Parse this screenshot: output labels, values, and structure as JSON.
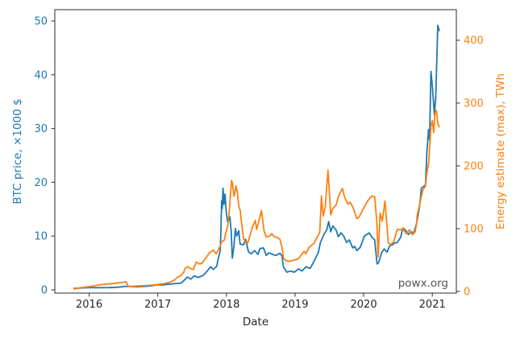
{
  "figure": {
    "watermark": "powx.org"
  },
  "style": {
    "background": "#ffffff",
    "spine_color": "#3d3d3d",
    "tick_color": "#3d3d3d",
    "x_tick_label_color": "#262626",
    "watermark_color": "#555555"
  },
  "chart_data": {
    "type": "line",
    "title": "",
    "xlabel": "Date",
    "grid": false,
    "legend_position": "none",
    "xlim": [
      2015.5,
      2021.35
    ],
    "x_ticks": [
      2016,
      2017,
      2018,
      2019,
      2020,
      2021
    ],
    "left_axis": {
      "label": "BTC price, ×1000 $",
      "color": "#1f77b4",
      "ticks": [
        0,
        10,
        20,
        30,
        40,
        50
      ],
      "lim": [
        -0.6,
        52.1
      ]
    },
    "right_axis": {
      "label": "Energy estimate (max), TWh",
      "color": "#ff7f0e",
      "ticks": [
        0,
        100,
        200,
        300,
        400
      ],
      "lim": [
        -2.6,
        448.7
      ]
    },
    "series": [
      {
        "name": "BTC price, ×1000 $",
        "axis": "left",
        "color": "#1f77b4",
        "points": [
          [
            2015.78,
            0.28
          ],
          [
            2015.88,
            0.34
          ],
          [
            2016.03,
            0.43
          ],
          [
            2016.13,
            0.41
          ],
          [
            2016.29,
            0.42
          ],
          [
            2016.43,
            0.5
          ],
          [
            2016.52,
            0.66
          ],
          [
            2016.6,
            0.61
          ],
          [
            2016.7,
            0.58
          ],
          [
            2016.82,
            0.66
          ],
          [
            2016.91,
            0.74
          ],
          [
            2016.99,
            0.95
          ],
          [
            2017.05,
            0.89
          ],
          [
            2017.14,
            1.02
          ],
          [
            2017.26,
            1.18
          ],
          [
            2017.34,
            1.25
          ],
          [
            2017.38,
            1.7
          ],
          [
            2017.43,
            2.4
          ],
          [
            2017.48,
            2.0
          ],
          [
            2017.53,
            2.6
          ],
          [
            2017.59,
            2.3
          ],
          [
            2017.66,
            2.7
          ],
          [
            2017.72,
            3.5
          ],
          [
            2017.77,
            4.3
          ],
          [
            2017.81,
            3.8
          ],
          [
            2017.86,
            4.4
          ],
          [
            2017.88,
            5.8
          ],
          [
            2017.91,
            7.3
          ],
          [
            2017.92,
            11.0
          ],
          [
            2017.93,
            16.6
          ],
          [
            2017.94,
            15.1
          ],
          [
            2017.95,
            18.9
          ],
          [
            2017.965,
            15.9
          ],
          [
            2017.98,
            17.8
          ],
          [
            2018.0,
            14.2
          ],
          [
            2018.02,
            12.5
          ],
          [
            2018.05,
            13.6
          ],
          [
            2018.07,
            10.8
          ],
          [
            2018.085,
            5.9
          ],
          [
            2018.11,
            8.2
          ],
          [
            2018.13,
            11.4
          ],
          [
            2018.15,
            10.0
          ],
          [
            2018.18,
            11.0
          ],
          [
            2018.2,
            8.5
          ],
          [
            2018.25,
            8.4
          ],
          [
            2018.28,
            9.4
          ],
          [
            2018.32,
            7.1
          ],
          [
            2018.36,
            6.7
          ],
          [
            2018.41,
            7.3
          ],
          [
            2018.46,
            6.6
          ],
          [
            2018.49,
            7.7
          ],
          [
            2018.54,
            7.8
          ],
          [
            2018.58,
            6.4
          ],
          [
            2018.62,
            6.9
          ],
          [
            2018.67,
            6.6
          ],
          [
            2018.72,
            6.4
          ],
          [
            2018.78,
            6.8
          ],
          [
            2018.81,
            6.3
          ],
          [
            2018.83,
            4.3
          ],
          [
            2018.88,
            3.3
          ],
          [
            2018.93,
            3.5
          ],
          [
            2018.99,
            3.3
          ],
          [
            2019.05,
            3.9
          ],
          [
            2019.1,
            3.5
          ],
          [
            2019.16,
            4.3
          ],
          [
            2019.22,
            4.0
          ],
          [
            2019.28,
            5.4
          ],
          [
            2019.34,
            7.0
          ],
          [
            2019.37,
            8.8
          ],
          [
            2019.42,
            10.3
          ],
          [
            2019.46,
            11.1
          ],
          [
            2019.49,
            12.7
          ],
          [
            2019.52,
            10.8
          ],
          [
            2019.55,
            11.9
          ],
          [
            2019.6,
            11.1
          ],
          [
            2019.63,
            9.9
          ],
          [
            2019.67,
            10.6
          ],
          [
            2019.71,
            10.0
          ],
          [
            2019.75,
            8.8
          ],
          [
            2019.79,
            9.3
          ],
          [
            2019.84,
            7.8
          ],
          [
            2019.87,
            8.1
          ],
          [
            2019.9,
            7.3
          ],
          [
            2019.95,
            7.9
          ],
          [
            2020.01,
            10.0
          ],
          [
            2020.08,
            10.6
          ],
          [
            2020.12,
            9.8
          ],
          [
            2020.16,
            9.3
          ],
          [
            2020.195,
            4.8
          ],
          [
            2020.22,
            5.1
          ],
          [
            2020.26,
            6.9
          ],
          [
            2020.3,
            7.6
          ],
          [
            2020.34,
            7.0
          ],
          [
            2020.38,
            8.2
          ],
          [
            2020.42,
            8.4
          ],
          [
            2020.45,
            8.7
          ],
          [
            2020.49,
            8.8
          ],
          [
            2020.54,
            9.8
          ],
          [
            2020.57,
            11.5
          ],
          [
            2020.61,
            11.1
          ],
          [
            2020.65,
            10.3
          ],
          [
            2020.69,
            10.8
          ],
          [
            2020.73,
            10.6
          ],
          [
            2020.77,
            12.3
          ],
          [
            2020.81,
            15.1
          ],
          [
            2020.83,
            17.4
          ],
          [
            2020.84,
            18.9
          ],
          [
            2020.88,
            19.3
          ],
          [
            2020.9,
            19.5
          ],
          [
            2020.92,
            25.3
          ],
          [
            2020.945,
            29.8
          ],
          [
            2020.96,
            27.8
          ],
          [
            2020.98,
            40.6
          ],
          [
            2021.0,
            38.0
          ],
          [
            2021.03,
            32.5
          ],
          [
            2021.05,
            36.0
          ],
          [
            2021.08,
            49.2
          ],
          [
            2021.1,
            48.2
          ]
        ]
      },
      {
        "name": "Energy estimate (max), TWh",
        "axis": "right",
        "color": "#ff7f0e",
        "points": [
          [
            2015.78,
            4
          ],
          [
            2015.88,
            6
          ],
          [
            2016.03,
            8
          ],
          [
            2016.15,
            10.5
          ],
          [
            2016.23,
            11.5
          ],
          [
            2016.35,
            12.5
          ],
          [
            2016.43,
            14
          ],
          [
            2016.49,
            14.5
          ],
          [
            2016.54,
            15.5
          ],
          [
            2016.57,
            8
          ],
          [
            2016.62,
            8.2
          ],
          [
            2016.7,
            8.8
          ],
          [
            2016.82,
            9.5
          ],
          [
            2016.93,
            10.2
          ],
          [
            2016.99,
            10.8
          ],
          [
            2017.09,
            12.5
          ],
          [
            2017.17,
            14.5
          ],
          [
            2017.24,
            18
          ],
          [
            2017.29,
            23
          ],
          [
            2017.34,
            25.5
          ],
          [
            2017.38,
            31
          ],
          [
            2017.4,
            37
          ],
          [
            2017.44,
            39.5
          ],
          [
            2017.48,
            36
          ],
          [
            2017.52,
            35
          ],
          [
            2017.56,
            47
          ],
          [
            2017.6,
            44
          ],
          [
            2017.64,
            44.5
          ],
          [
            2017.7,
            53
          ],
          [
            2017.75,
            61
          ],
          [
            2017.81,
            66
          ],
          [
            2017.85,
            60
          ],
          [
            2017.9,
            70
          ],
          [
            2017.93,
            79
          ],
          [
            2017.97,
            82
          ],
          [
            2017.99,
            93
          ],
          [
            2018.02,
            105
          ],
          [
            2018.04,
            125
          ],
          [
            2018.06,
            155
          ],
          [
            2018.075,
            177
          ],
          [
            2018.09,
            171
          ],
          [
            2018.11,
            152
          ],
          [
            2018.13,
            161
          ],
          [
            2018.14,
            168
          ],
          [
            2018.16,
            158
          ],
          [
            2018.18,
            136
          ],
          [
            2018.2,
            130
          ],
          [
            2018.22,
            110
          ],
          [
            2018.25,
            84
          ],
          [
            2018.28,
            78
          ],
          [
            2018.31,
            77
          ],
          [
            2018.34,
            88
          ],
          [
            2018.38,
            103
          ],
          [
            2018.42,
            113
          ],
          [
            2018.44,
            99
          ],
          [
            2018.48,
            115
          ],
          [
            2018.51,
            129
          ],
          [
            2018.55,
            96
          ],
          [
            2018.58,
            87
          ],
          [
            2018.63,
            88
          ],
          [
            2018.66,
            92
          ],
          [
            2018.7,
            87
          ],
          [
            2018.74,
            86
          ],
          [
            2018.78,
            83
          ],
          [
            2018.81,
            70
          ],
          [
            2018.83,
            53
          ],
          [
            2018.87,
            49
          ],
          [
            2018.92,
            48
          ],
          [
            2018.98,
            50
          ],
          [
            2019.03,
            51
          ],
          [
            2019.07,
            55
          ],
          [
            2019.13,
            64
          ],
          [
            2019.16,
            60
          ],
          [
            2019.2,
            70
          ],
          [
            2019.28,
            77
          ],
          [
            2019.32,
            86
          ],
          [
            2019.36,
            94
          ],
          [
            2019.385,
            152
          ],
          [
            2019.41,
            120
          ],
          [
            2019.44,
            135
          ],
          [
            2019.48,
            193
          ],
          [
            2019.52,
            122
          ],
          [
            2019.55,
            132
          ],
          [
            2019.6,
            138
          ],
          [
            2019.63,
            151
          ],
          [
            2019.69,
            164
          ],
          [
            2019.72,
            151
          ],
          [
            2019.77,
            139
          ],
          [
            2019.8,
            142
          ],
          [
            2019.84,
            135
          ],
          [
            2019.9,
            116
          ],
          [
            2019.93,
            118
          ],
          [
            2019.97,
            126
          ],
          [
            2020.03,
            139
          ],
          [
            2020.07,
            146
          ],
          [
            2020.12,
            152
          ],
          [
            2020.16,
            151
          ],
          [
            2020.19,
            112
          ],
          [
            2020.21,
            55
          ],
          [
            2020.24,
            125
          ],
          [
            2020.27,
            112
          ],
          [
            2020.31,
            144
          ],
          [
            2020.36,
            77
          ],
          [
            2020.4,
            75
          ],
          [
            2020.44,
            80
          ],
          [
            2020.49,
            99
          ],
          [
            2020.53,
            98
          ],
          [
            2020.57,
            100
          ],
          [
            2020.62,
            92
          ],
          [
            2020.67,
            98
          ],
          [
            2020.71,
            90
          ],
          [
            2020.75,
            95
          ],
          [
            2020.77,
            107
          ],
          [
            2020.78,
            122
          ],
          [
            2020.81,
            135
          ],
          [
            2020.83,
            146
          ],
          [
            2020.86,
            161
          ],
          [
            2020.9,
            168
          ],
          [
            2020.92,
            188
          ],
          [
            2020.95,
            207
          ],
          [
            2020.96,
            227
          ],
          [
            2020.98,
            263
          ],
          [
            2021.0,
            272
          ],
          [
            2021.02,
            253
          ],
          [
            2021.04,
            285
          ],
          [
            2021.06,
            288
          ],
          [
            2021.08,
            268
          ],
          [
            2021.1,
            262
          ]
        ]
      }
    ]
  }
}
